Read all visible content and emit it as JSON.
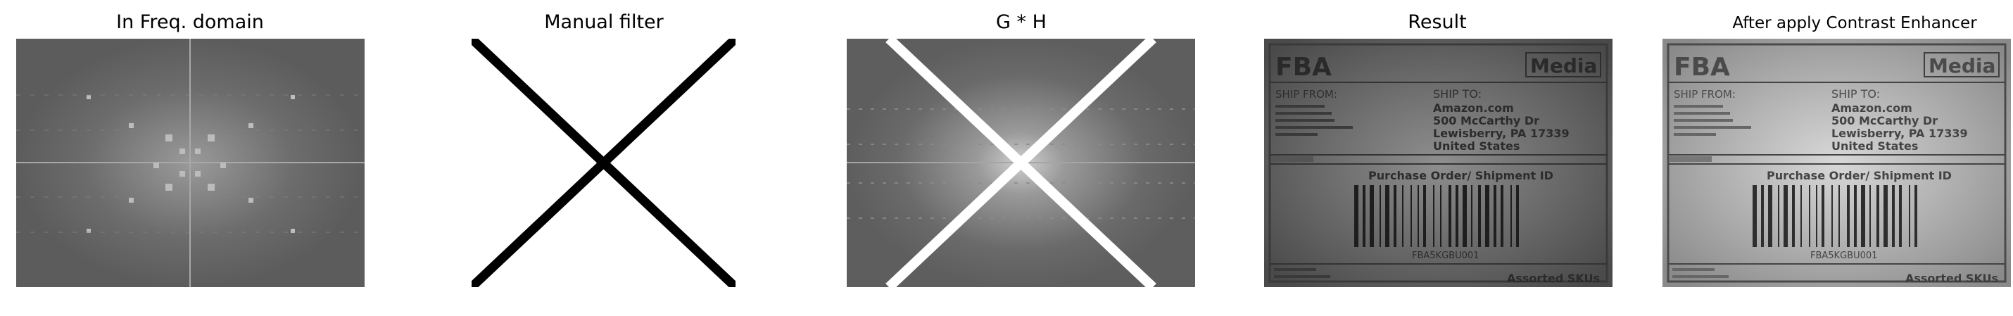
{
  "panels": [
    {
      "id": "freq",
      "title": "In Freq. domain"
    },
    {
      "id": "filter",
      "title": "Manual filter"
    },
    {
      "id": "gh",
      "title": "G * H"
    },
    {
      "id": "result",
      "title": "Result"
    },
    {
      "id": "enhanced",
      "title": "After apply Contrast Enhancer"
    }
  ],
  "label": {
    "brand": "FBA",
    "media": "Media",
    "ship_from": "SHIP FROM:",
    "ship_to": "SHIP TO:",
    "to_lines": [
      "Amazon.com",
      "500 McCarthy Dr",
      "Lewisberry, PA 17339",
      "United States"
    ],
    "po_title": "Purchase Order/ Shipment ID",
    "barcode_id": "FBA5KGBU001",
    "skus": "Assorted SKUs"
  }
}
